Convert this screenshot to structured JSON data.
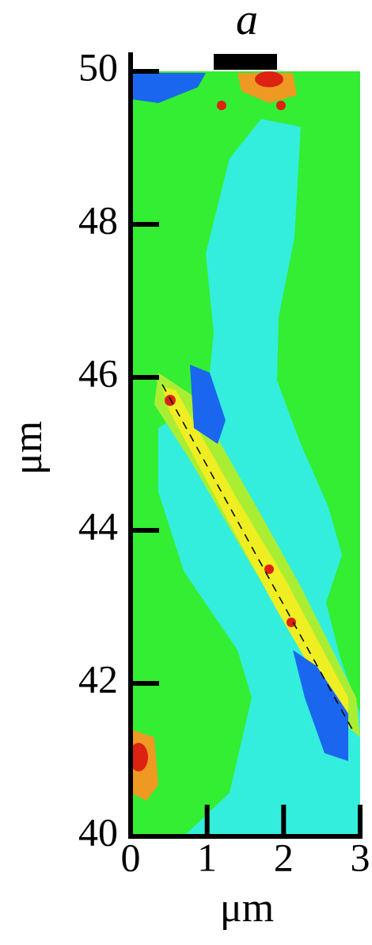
{
  "chart_data": {
    "type": "contour",
    "title": "a",
    "xlabel": "μm",
    "ylabel": "μm",
    "xlim": [
      0,
      3
    ],
    "ylim": [
      40,
      50
    ],
    "xticks": [
      0,
      1,
      2,
      3
    ],
    "yticks": [
      40,
      42,
      44,
      46,
      48,
      50
    ]
  }
}
